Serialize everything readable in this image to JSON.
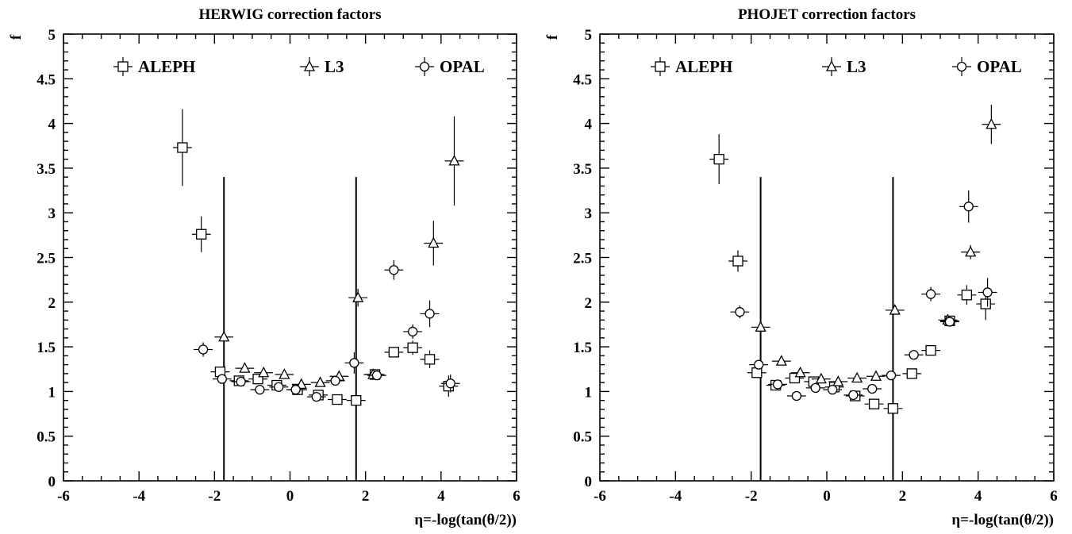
{
  "chart_data": [
    {
      "type": "scatter",
      "title": "HERWIG correction factors",
      "xlabel": "η=-log(tan(θ/2))",
      "ylabel": "f",
      "xlim": [
        -6,
        6
      ],
      "ylim": [
        0,
        5
      ],
      "x_ticks": [
        "-6",
        "-4",
        "-2",
        "0",
        "2",
        "4",
        "6"
      ],
      "y_ticks": [
        "0",
        "0.5",
        "1",
        "1.5",
        "2",
        "2.5",
        "3",
        "3.5",
        "4",
        "4.5",
        "5"
      ],
      "vertical_lines": [
        -1.75,
        1.75
      ],
      "legend": [
        "ALEPH",
        "L3",
        "OPAL"
      ],
      "series": [
        {
          "name": "ALEPH",
          "marker": "square",
          "points": [
            [
              -2.85,
              3.73,
              0.43
            ],
            [
              -2.35,
              2.76,
              0.2
            ],
            [
              -1.85,
              1.22,
              0.05
            ],
            [
              -1.35,
              1.12,
              0.04
            ],
            [
              -0.85,
              1.14,
              0.04
            ],
            [
              -0.35,
              1.07,
              0.04
            ],
            [
              0.2,
              1.02,
              0.04
            ],
            [
              0.75,
              0.96,
              0.04
            ],
            [
              1.25,
              0.91,
              0.04
            ],
            [
              1.75,
              0.9,
              0.04
            ],
            [
              2.25,
              1.19,
              0.04
            ],
            [
              2.75,
              1.44,
              0.05
            ],
            [
              3.25,
              1.49,
              0.08
            ],
            [
              3.7,
              1.36,
              0.1
            ],
            [
              4.2,
              1.06,
              0.12
            ]
          ]
        },
        {
          "name": "L3",
          "marker": "triangle",
          "points": [
            [
              -1.75,
              1.61,
              0.14
            ],
            [
              -1.2,
              1.26,
              0.05
            ],
            [
              -0.7,
              1.21,
              0.04
            ],
            [
              -0.15,
              1.19,
              0.04
            ],
            [
              0.3,
              1.08,
              0.04
            ],
            [
              0.8,
              1.1,
              0.04
            ],
            [
              1.3,
              1.17,
              0.04
            ],
            [
              1.8,
              2.05,
              0.1
            ],
            [
              2.2,
              1.19,
              0.04
            ],
            [
              3.8,
              2.66,
              0.25
            ],
            [
              4.35,
              3.58,
              0.5
            ]
          ]
        },
        {
          "name": "OPAL",
          "marker": "circle",
          "points": [
            [
              -2.3,
              1.47,
              0.08
            ],
            [
              -1.8,
              1.14,
              0.04
            ],
            [
              -1.3,
              1.11,
              0.04
            ],
            [
              -0.8,
              1.02,
              0.04
            ],
            [
              -0.3,
              1.05,
              0.04
            ],
            [
              0.15,
              1.02,
              0.04
            ],
            [
              0.7,
              0.94,
              0.04
            ],
            [
              1.2,
              1.12,
              0.04
            ],
            [
              1.7,
              1.32,
              0.12
            ],
            [
              2.3,
              1.18,
              0.04
            ],
            [
              2.75,
              2.36,
              0.11
            ],
            [
              3.25,
              1.67,
              0.08
            ],
            [
              3.7,
              1.87,
              0.15
            ],
            [
              4.25,
              1.09,
              0.1
            ]
          ]
        }
      ]
    },
    {
      "type": "scatter",
      "title": "PHOJET correction factors",
      "xlabel": "η=-log(tan(θ/2))",
      "ylabel": "f",
      "xlim": [
        -6,
        6
      ],
      "ylim": [
        0,
        5
      ],
      "x_ticks": [
        "-6",
        "-4",
        "-2",
        "0",
        "2",
        "4",
        "6"
      ],
      "y_ticks": [
        "0",
        "0.5",
        "1",
        "1.5",
        "2",
        "2.5",
        "3",
        "3.5",
        "4",
        "4.5",
        "5"
      ],
      "vertical_lines": [
        -1.75,
        1.75
      ],
      "legend": [
        "ALEPH",
        "L3",
        "OPAL"
      ],
      "series": [
        {
          "name": "ALEPH",
          "marker": "square",
          "points": [
            [
              -2.85,
              3.6,
              0.28
            ],
            [
              -2.35,
              2.46,
              0.12
            ],
            [
              -1.85,
              1.21,
              0.05
            ],
            [
              -1.35,
              1.07,
              0.04
            ],
            [
              -0.85,
              1.15,
              0.04
            ],
            [
              -0.35,
              1.11,
              0.04
            ],
            [
              0.2,
              1.05,
              0.04
            ],
            [
              0.75,
              0.95,
              0.04
            ],
            [
              1.25,
              0.86,
              0.04
            ],
            [
              1.75,
              0.81,
              0.04
            ],
            [
              2.25,
              1.2,
              0.04
            ],
            [
              2.75,
              1.46,
              0.04
            ],
            [
              3.25,
              1.79,
              0.04
            ],
            [
              3.7,
              2.08,
              0.11
            ],
            [
              4.2,
              1.98,
              0.18
            ]
          ]
        },
        {
          "name": "L3",
          "marker": "triangle",
          "points": [
            [
              -1.75,
              1.72,
              0.07
            ],
            [
              -1.2,
              1.34,
              0.04
            ],
            [
              -0.7,
              1.21,
              0.04
            ],
            [
              -0.15,
              1.14,
              0.04
            ],
            [
              0.3,
              1.11,
              0.04
            ],
            [
              0.8,
              1.15,
              0.04
            ],
            [
              1.3,
              1.17,
              0.04
            ],
            [
              1.8,
              1.91,
              0.04
            ],
            [
              3.2,
              1.8,
              0.04
            ],
            [
              3.8,
              2.56,
              0.08
            ],
            [
              4.35,
              3.99,
              0.22
            ]
          ]
        },
        {
          "name": "OPAL",
          "marker": "circle",
          "points": [
            [
              -2.3,
              1.89,
              0.07
            ],
            [
              -1.8,
              1.3,
              0.04
            ],
            [
              -1.3,
              1.08,
              0.04
            ],
            [
              -0.8,
              0.95,
              0.04
            ],
            [
              -0.3,
              1.04,
              0.04
            ],
            [
              0.15,
              1.02,
              0.04
            ],
            [
              0.7,
              0.96,
              0.04
            ],
            [
              1.2,
              1.03,
              0.04
            ],
            [
              1.7,
              1.18,
              0.04
            ],
            [
              2.3,
              1.41,
              0.04
            ],
            [
              2.75,
              2.09,
              0.08
            ],
            [
              3.25,
              1.78,
              0.04
            ],
            [
              3.75,
              3.07,
              0.18
            ],
            [
              4.25,
              2.11,
              0.16
            ]
          ]
        }
      ]
    }
  ]
}
